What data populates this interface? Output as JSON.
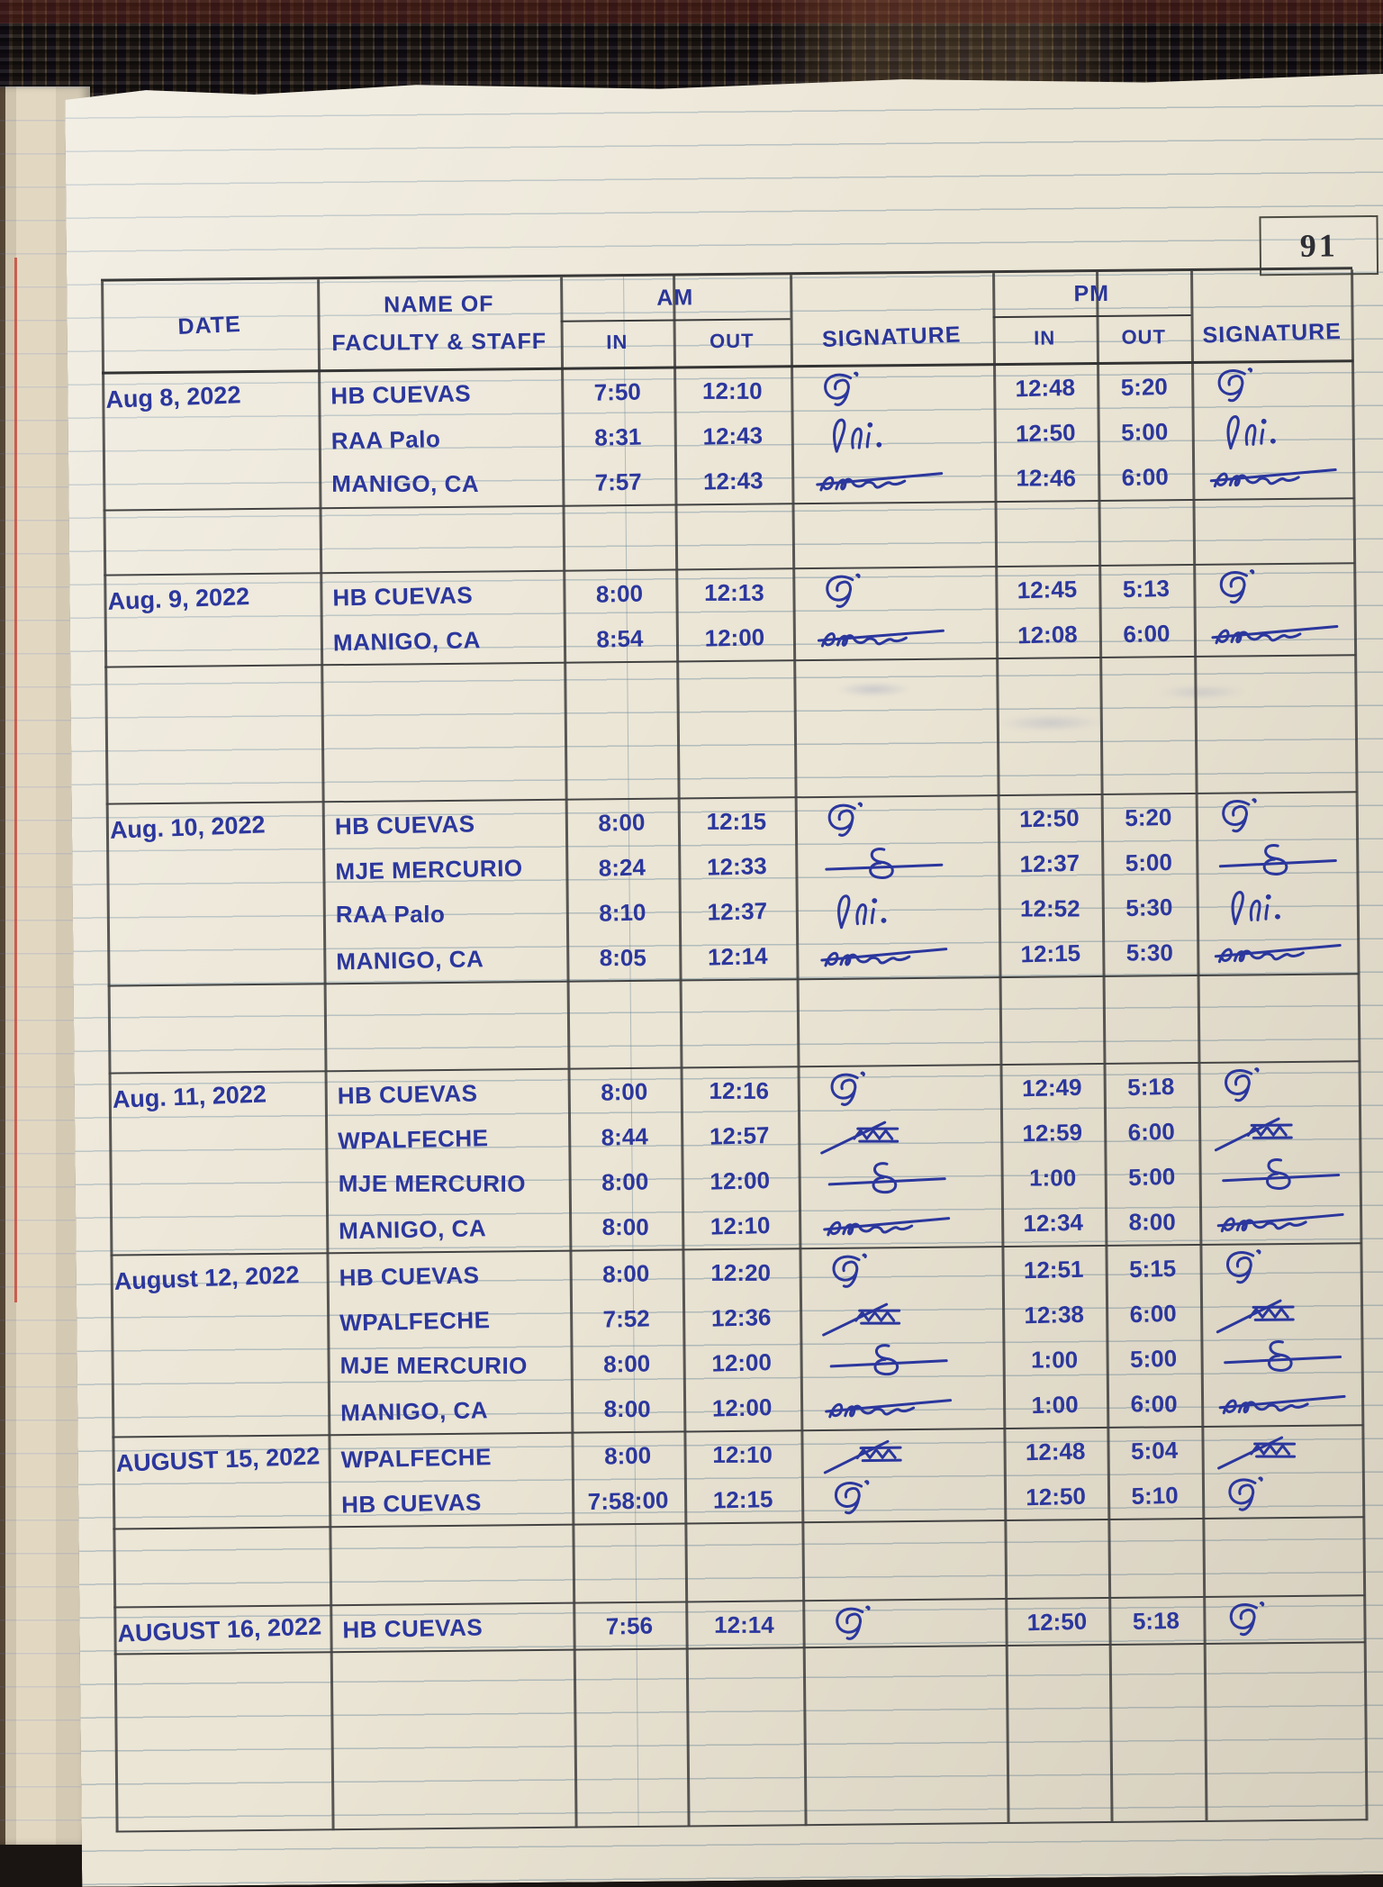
{
  "page": {
    "number": "91"
  },
  "header": {
    "date": "DATE",
    "name_line1": "NAME OF",
    "name_line2": "FACULTY & STAFF",
    "am": "AM",
    "pm": "PM",
    "in": "IN",
    "out": "OUT",
    "signature": "SIGNATURE"
  },
  "blocks": [
    {
      "date": "Aug 8, 2022",
      "rows": [
        {
          "name": "HB CUEVAS",
          "am_in": "7:50",
          "am_out": "12:10",
          "am_sig": "cuevas",
          "pm_in": "12:48",
          "pm_out": "5:20",
          "pm_sig": "cuevas"
        },
        {
          "name": "RAA Palo",
          "am_in": "8:31",
          "am_out": "12:43",
          "am_sig": "palo",
          "pm_in": "12:50",
          "pm_out": "5:00",
          "pm_sig": "palo"
        },
        {
          "name": "MANIGO, CA",
          "am_in": "7:57",
          "am_out": "12:43",
          "am_sig": "manigo",
          "pm_in": "12:46",
          "pm_out": "6:00",
          "pm_sig": "manigo"
        }
      ],
      "spacer_after": 70
    },
    {
      "date": "Aug. 9, 2022",
      "rows": [
        {
          "name": "HB CUEVAS",
          "am_in": "8:00",
          "am_out": "12:13",
          "am_sig": "cuevas",
          "pm_in": "12:45",
          "pm_out": "5:13",
          "pm_sig": "cuevas"
        },
        {
          "name": "MANIGO, CA",
          "am_in": "8:54",
          "am_out": "12:00",
          "am_sig": "manigo",
          "pm_in": "12:08",
          "pm_out": "6:00",
          "pm_sig": "manigo"
        }
      ],
      "spacer_after": 150
    },
    {
      "date": "Aug. 10, 2022",
      "rows": [
        {
          "name": "HB CUEVAS",
          "am_in": "8:00",
          "am_out": "12:15",
          "am_sig": "cuevas",
          "pm_in": "12:50",
          "pm_out": "5:20",
          "pm_sig": "cuevas"
        },
        {
          "name": "MJE MERCURIO",
          "am_in": "8:24",
          "am_out": "12:33",
          "am_sig": "mercurio",
          "pm_in": "12:37",
          "pm_out": "5:00",
          "pm_sig": "mercurio"
        },
        {
          "name": "RAA Palo",
          "am_in": "8:10",
          "am_out": "12:37",
          "am_sig": "palo",
          "pm_in": "12:52",
          "pm_out": "5:30",
          "pm_sig": "palo"
        },
        {
          "name": "MANIGO, CA",
          "am_in": "8:05",
          "am_out": "12:14",
          "am_sig": "manigo",
          "pm_in": "12:15",
          "pm_out": "5:30",
          "pm_sig": "manigo"
        }
      ],
      "spacer_after": 95
    },
    {
      "date": "Aug. 11, 2022",
      "rows": [
        {
          "name": "HB CUEVAS",
          "am_in": "8:00",
          "am_out": "12:16",
          "am_sig": "cuevas",
          "pm_in": "12:49",
          "pm_out": "5:18",
          "pm_sig": "cuevas"
        },
        {
          "name": "WPALFECHE",
          "am_in": "8:44",
          "am_out": "12:57",
          "am_sig": "alfeche",
          "pm_in": "12:59",
          "pm_out": "6:00",
          "pm_sig": "alfeche"
        },
        {
          "name": "MJE MERCURIO",
          "am_in": "8:00",
          "am_out": "12:00",
          "am_sig": "mercurio",
          "pm_in": "1:00",
          "pm_out": "5:00",
          "pm_sig": "mercurio"
        },
        {
          "name": "MANIGO, CA",
          "am_in": "8:00",
          "am_out": "12:10",
          "am_sig": "manigo",
          "pm_in": "12:34",
          "pm_out": "8:00",
          "pm_sig": "manigo"
        }
      ],
      "spacer_after": 0
    },
    {
      "date": "August 12, 2022",
      "rows": [
        {
          "name": "HB CUEVAS",
          "am_in": "8:00",
          "am_out": "12:20",
          "am_sig": "cuevas",
          "pm_in": "12:51",
          "pm_out": "5:15",
          "pm_sig": "cuevas"
        },
        {
          "name": "WPALFECHE",
          "am_in": "7:52",
          "am_out": "12:36",
          "am_sig": "alfeche",
          "pm_in": "12:38",
          "pm_out": "6:00",
          "pm_sig": "alfeche"
        },
        {
          "name": "MJE MERCURIO",
          "am_in": "8:00",
          "am_out": "12:00",
          "am_sig": "mercurio",
          "pm_in": "1:00",
          "pm_out": "5:00",
          "pm_sig": "mercurio"
        },
        {
          "name": "MANIGO, CA",
          "am_in": "8:00",
          "am_out": "12:00",
          "am_sig": "manigo",
          "pm_in": "1:00",
          "pm_out": "6:00",
          "pm_sig": "manigo"
        }
      ],
      "spacer_after": 0
    },
    {
      "date": "AUGUST 15, 2022",
      "rows": [
        {
          "name": "WPALFECHE",
          "am_in": "8:00",
          "am_out": "12:10",
          "am_sig": "alfeche",
          "pm_in": "12:48",
          "pm_out": "5:04",
          "pm_sig": "alfeche"
        },
        {
          "name": "HB CUEVAS",
          "am_in": "7:58:00",
          "am_out": "12:15",
          "am_sig": "cuevas",
          "pm_in": "12:50",
          "pm_out": "5:10",
          "pm_sig": "cuevas"
        }
      ],
      "spacer_after": 85
    },
    {
      "date": "AUGUST 16, 2022",
      "rows": [
        {
          "name": "HB CUEVAS",
          "am_in": "7:56",
          "am_out": "12:14",
          "am_sig": "cuevas",
          "pm_in": "12:50",
          "pm_out": "5:18",
          "pm_sig": "cuevas"
        }
      ],
      "spacer_after": 195
    }
  ]
}
